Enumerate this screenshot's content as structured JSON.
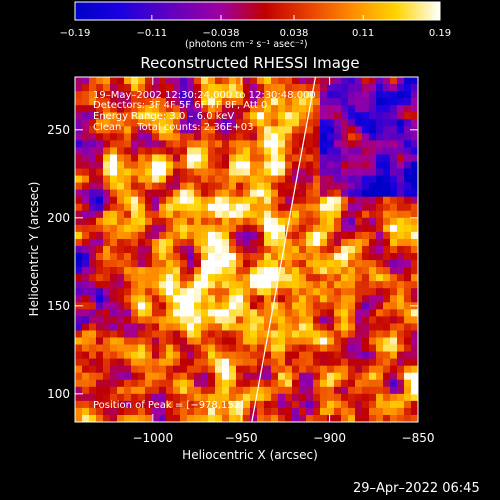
{
  "chart_data": {
    "type": "heatmap",
    "title": "Reconstructed RHESSI Image",
    "colorbar": {
      "ticks": [
        "-0.19",
        "-0.11",
        "-0.038",
        "0.038",
        "0.11",
        "0.19"
      ],
      "tick_values": [
        -0.19,
        -0.11,
        -0.038,
        0.038,
        0.11,
        0.19
      ],
      "range": [
        -0.19,
        0.19
      ],
      "unit_label": "(photons cm⁻² s⁻¹ asec⁻²)",
      "palette": [
        "#0000c8",
        "#1a00e0",
        "#6000c0",
        "#a000a0",
        "#c00000",
        "#e84000",
        "#ff8c00",
        "#ffd400",
        "#ffffff"
      ]
    },
    "xlabel": "Heliocentric X (arcsec)",
    "ylabel": "Heliocentric Y (arcsec)",
    "xlim": [
      -1044,
      -850
    ],
    "ylim": [
      84,
      280
    ],
    "xticks": [
      -1000,
      -950,
      -900,
      -850
    ],
    "xtick_labels": [
      "−1000",
      "−950",
      "−900",
      "−850"
    ],
    "yticks": [
      100,
      150,
      200,
      250
    ],
    "ytick_labels": [
      "100",
      "150",
      "200",
      "250"
    ],
    "annotations": [
      "19–May–2002 12:30:24.000 to 12:30:48.000",
      "Detectors: 3F 4F 5F 6F 7F 8F, Att 0",
      "Energy Range: 3.0 – 6.0 keV",
      "Clean     Total counts: 2.36E+03"
    ],
    "peak_label": "Position of Peak = [−978,152]",
    "peak": [
      -978,
      152
    ],
    "limb_line": [
      [
        -944,
        84
      ],
      [
        -908,
        280
      ]
    ],
    "grid": false
  },
  "footer": {
    "timestamp": "29–Apr–2022 06:45"
  }
}
